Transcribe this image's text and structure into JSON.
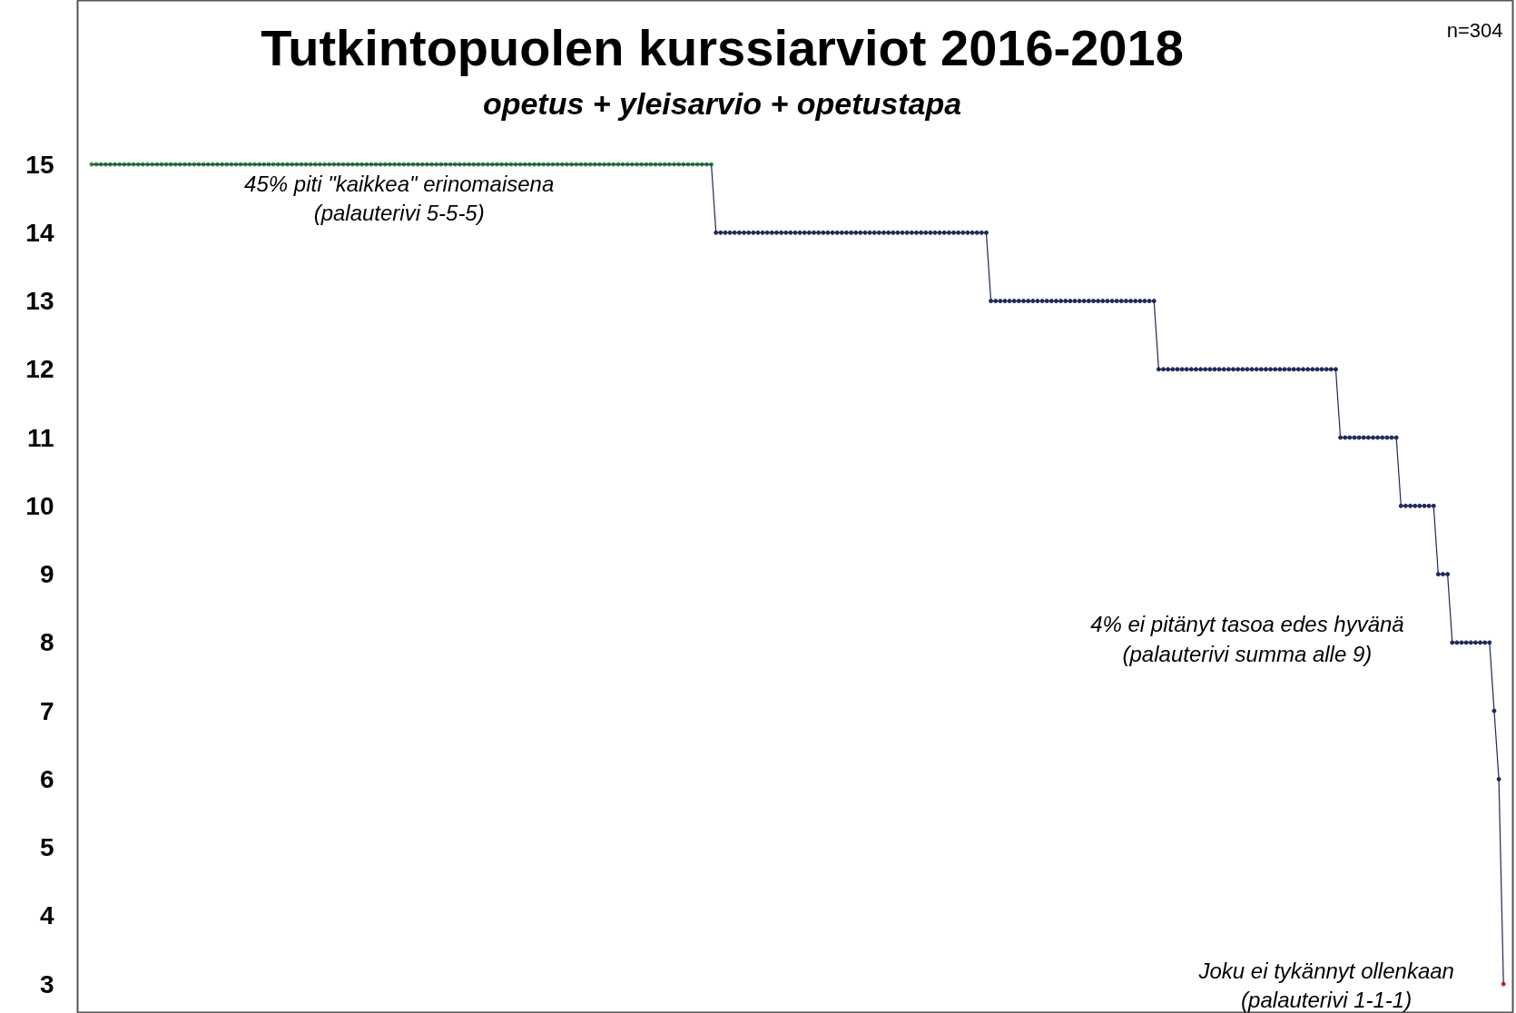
{
  "chart_data": {
    "type": "line",
    "title": "Tutkintopuolen kurssiarviot 2016-2018",
    "subtitle": "opetus + yleisarvio + opetustapa",
    "annotations": [
      "n=304",
      "45% piti \"kaikkea\" erinomaisena\n(palauterivi 5-5-5)",
      "4% ei pitänyt tasoa edes hyvänä\n(palauterivi summa alle 9)",
      "Joku ei tykännyt ollenkaan\n(palauterivi 1-1-1)"
    ],
    "categories": [
      null,
      null,
      null,
      null,
      null,
      null,
      null,
      null,
      null,
      null,
      null,
      null,
      null,
      null,
      null,
      null,
      null,
      null,
      null,
      null,
      null,
      null,
      null,
      null,
      null,
      null,
      null,
      null,
      null,
      null,
      null,
      null,
      null,
      null,
      null,
      null,
      null,
      null,
      null,
      null,
      null,
      null,
      null,
      null,
      null,
      null,
      null,
      null,
      null,
      null,
      null,
      null,
      null,
      null,
      null,
      null,
      null,
      null,
      null,
      null,
      null,
      null,
      null,
      null,
      null,
      null,
      null,
      null,
      null,
      null,
      null,
      null,
      null,
      null,
      null,
      null,
      null,
      null,
      null,
      null,
      null,
      null,
      null,
      null,
      null,
      null,
      null,
      null,
      null,
      null,
      null,
      null,
      null,
      null,
      null,
      null,
      null,
      null,
      null,
      null,
      null,
      null,
      null,
      null,
      null,
      null,
      null,
      null,
      null,
      null,
      null,
      null,
      null,
      null,
      null,
      null,
      null,
      null,
      null,
      null,
      null,
      null,
      null,
      null,
      null,
      null,
      null,
      null,
      null,
      null,
      null,
      null,
      null,
      null,
      null,
      null,
      null,
      null,
      null,
      null,
      null,
      null,
      null,
      null,
      null,
      null,
      null,
      null,
      null,
      null,
      null,
      null,
      null,
      null,
      null,
      null,
      null,
      null,
      null,
      null,
      null,
      null,
      null,
      null,
      null,
      null,
      null,
      null,
      null,
      null,
      null,
      null,
      null,
      null,
      null,
      null,
      null,
      null,
      null,
      null,
      null,
      null,
      null,
      null,
      null,
      null,
      null,
      null,
      null,
      null,
      null,
      null,
      null,
      null,
      null,
      null,
      null,
      null,
      null,
      null,
      null,
      null,
      null,
      null,
      null,
      null,
      null,
      null,
      null,
      null,
      null,
      null,
      null,
      null,
      null,
      null,
      null,
      null,
      null,
      null,
      null,
      null,
      null,
      null,
      null,
      null,
      null,
      null,
      null,
      null,
      null,
      null,
      null,
      null,
      null,
      null,
      null,
      null,
      null,
      null,
      null,
      null,
      null,
      null,
      null,
      null,
      null,
      null,
      null,
      null,
      null,
      null,
      null,
      null,
      null,
      null,
      null,
      null,
      null,
      null,
      null,
      null,
      null,
      null,
      null,
      null,
      null,
      null,
      null,
      null,
      null,
      null,
      null,
      null,
      null,
      null,
      null,
      null,
      null,
      null,
      null,
      null,
      null,
      null,
      null,
      null,
      null,
      null,
      null,
      null,
      null,
      null,
      null,
      null,
      null,
      null,
      null,
      null,
      null,
      null,
      null,
      null,
      null,
      null
    ],
    "series": [
      {
        "color": "#1f2a5c",
        "values": [
          15,
          15,
          15,
          15,
          15,
          15,
          15,
          15,
          15,
          15,
          15,
          15,
          15,
          15,
          15,
          15,
          15,
          15,
          15,
          15,
          15,
          15,
          15,
          15,
          15,
          15,
          15,
          15,
          15,
          15,
          15,
          15,
          15,
          15,
          15,
          15,
          15,
          15,
          15,
          15,
          15,
          15,
          15,
          15,
          15,
          15,
          15,
          15,
          15,
          15,
          15,
          15,
          15,
          15,
          15,
          15,
          15,
          15,
          15,
          15,
          15,
          15,
          15,
          15,
          15,
          15,
          15,
          15,
          15,
          15,
          15,
          15,
          15,
          15,
          15,
          15,
          15,
          15,
          15,
          15,
          15,
          15,
          15,
          15,
          15,
          15,
          15,
          15,
          15,
          15,
          15,
          15,
          15,
          15,
          15,
          15,
          15,
          15,
          15,
          15,
          15,
          15,
          15,
          15,
          15,
          15,
          15,
          15,
          15,
          15,
          15,
          15,
          15,
          15,
          15,
          15,
          15,
          15,
          15,
          15,
          15,
          15,
          15,
          15,
          15,
          15,
          15,
          15,
          15,
          15,
          15,
          15,
          15,
          15,
          14,
          14,
          14,
          14,
          14,
          14,
          14,
          14,
          14,
          14,
          14,
          14,
          14,
          14,
          14,
          14,
          14,
          14,
          14,
          14,
          14,
          14,
          14,
          14,
          14,
          14,
          14,
          14,
          14,
          14,
          14,
          14,
          14,
          14,
          14,
          14,
          14,
          14,
          14,
          14,
          14,
          14,
          14,
          14,
          14,
          14,
          14,
          14,
          14,
          14,
          14,
          14,
          14,
          14,
          14,
          14,
          14,
          14,
          14,
          13,
          13,
          13,
          13,
          13,
          13,
          13,
          13,
          13,
          13,
          13,
          13,
          13,
          13,
          13,
          13,
          13,
          13,
          13,
          13,
          13,
          13,
          13,
          13,
          13,
          13,
          13,
          13,
          13,
          13,
          13,
          13,
          13,
          13,
          13,
          13,
          12,
          12,
          12,
          12,
          12,
          12,
          12,
          12,
          12,
          12,
          12,
          12,
          12,
          12,
          12,
          12,
          12,
          12,
          12,
          12,
          12,
          12,
          12,
          12,
          12,
          12,
          12,
          12,
          12,
          12,
          12,
          12,
          12,
          12,
          12,
          12,
          12,
          12,
          12,
          11,
          11,
          11,
          11,
          11,
          11,
          11,
          11,
          11,
          11,
          11,
          11,
          11,
          10,
          10,
          10,
          10,
          10,
          10,
          10,
          10,
          9,
          9,
          9,
          8,
          8,
          8,
          8,
          8,
          8,
          8,
          8,
          8,
          7,
          6,
          3
        ],
        "colors": [
          "#2ca02c",
          "#2ca02c",
          "#2ca02c",
          "#2ca02c",
          "#2ca02c",
          "#2ca02c",
          "#2ca02c",
          "#2ca02c",
          "#2ca02c",
          "#2ca02c",
          "#2ca02c",
          "#2ca02c",
          "#2ca02c",
          "#2ca02c",
          "#2ca02c",
          "#2ca02c",
          "#2ca02c",
          "#2ca02c",
          "#2ca02c",
          "#2ca02c",
          "#2ca02c",
          "#2ca02c",
          "#2ca02c",
          "#2ca02c",
          "#2ca02c",
          "#2ca02c",
          "#2ca02c",
          "#2ca02c",
          "#2ca02c",
          "#2ca02c",
          "#2ca02c",
          "#2ca02c",
          "#2ca02c",
          "#2ca02c",
          "#2ca02c",
          "#2ca02c",
          "#2ca02c",
          "#2ca02c",
          "#2ca02c",
          "#2ca02c",
          "#2ca02c",
          "#2ca02c",
          "#2ca02c",
          "#2ca02c",
          "#2ca02c",
          "#2ca02c",
          "#2ca02c",
          "#2ca02c",
          "#2ca02c",
          "#2ca02c",
          "#2ca02c",
          "#2ca02c",
          "#2ca02c",
          "#2ca02c",
          "#2ca02c",
          "#2ca02c",
          "#2ca02c",
          "#2ca02c",
          "#2ca02c",
          "#2ca02c",
          "#2ca02c",
          "#2ca02c",
          "#2ca02c",
          "#2ca02c",
          "#2ca02c",
          "#2ca02c",
          "#2ca02c",
          "#2ca02c",
          "#2ca02c",
          "#2ca02c",
          "#2ca02c",
          "#2ca02c",
          "#2ca02c",
          "#2ca02c",
          "#2ca02c",
          "#2ca02c",
          "#2ca02c",
          "#2ca02c",
          "#2ca02c",
          "#2ca02c",
          "#2ca02c",
          "#2ca02c",
          "#2ca02c",
          "#2ca02c",
          "#2ca02c",
          "#2ca02c",
          "#2ca02c",
          "#2ca02c",
          "#2ca02c",
          "#2ca02c",
          "#2ca02c",
          "#2ca02c",
          "#2ca02c",
          "#2ca02c",
          "#2ca02c",
          "#2ca02c",
          "#2ca02c",
          "#2ca02c",
          "#2ca02c",
          "#2ca02c",
          "#2ca02c",
          "#2ca02c",
          "#2ca02c",
          "#2ca02c",
          "#2ca02c",
          "#2ca02c",
          "#2ca02c",
          "#2ca02c",
          "#2ca02c",
          "#2ca02c",
          "#2ca02c",
          "#2ca02c",
          "#2ca02c",
          "#2ca02c",
          "#2ca02c",
          "#2ca02c",
          "#2ca02c",
          "#2ca02c",
          "#2ca02c",
          "#2ca02c",
          "#2ca02c",
          "#2ca02c",
          "#2ca02c",
          "#2ca02c",
          "#2ca02c",
          "#2ca02c",
          "#2ca02c",
          "#2ca02c",
          "#2ca02c",
          "#2ca02c",
          "#2ca02c",
          "#2ca02c",
          "#2ca02c",
          "#2ca02c",
          "#1f2a5c",
          "#1f2a5c",
          "#1f2a5c",
          "#1f2a5c",
          "#1f2a5c",
          "#1f2a5c",
          "#1f2a5c",
          "#1f2a5c",
          "#1f2a5c",
          "#1f2a5c",
          "#1f2a5c",
          "#1f2a5c",
          "#1f2a5c",
          "#1f2a5c",
          "#1f2a5c",
          "#1f2a5c",
          "#1f2a5c",
          "#1f2a5c",
          "#1f2a5c",
          "#1f2a5c",
          "#1f2a5c",
          "#1f2a5c",
          "#1f2a5c",
          "#1f2a5c",
          "#1f2a5c",
          "#1f2a5c",
          "#1f2a5c",
          "#1f2a5c",
          "#1f2a5c",
          "#1f2a5c",
          "#1f2a5c",
          "#1f2a5c",
          "#1f2a5c",
          "#1f2a5c",
          "#1f2a5c",
          "#1f2a5c",
          "#1f2a5c",
          "#1f2a5c",
          "#1f2a5c",
          "#1f2a5c",
          "#1f2a5c",
          "#1f2a5c",
          "#1f2a5c",
          "#1f2a5c",
          "#1f2a5c",
          "#1f2a5c",
          "#1f2a5c",
          "#1f2a5c",
          "#1f2a5c",
          "#1f2a5c",
          "#1f2a5c",
          "#1f2a5c",
          "#1f2a5c",
          "#1f2a5c",
          "#1f2a5c",
          "#1f2a5c",
          "#1f2a5c",
          "#1f2a5c",
          "#1f2a5c",
          "#1f2a5c",
          "#1f2a5c",
          "#1f2a5c",
          "#1f2a5c",
          "#1f2a5c",
          "#1f2a5c",
          "#1f2a5c",
          "#1f2a5c",
          "#1f2a5c",
          "#1f2a5c",
          "#1f2a5c",
          "#1f2a5c",
          "#1f2a5c",
          "#1f2a5c",
          "#1f2a5c",
          "#1f2a5c",
          "#1f2a5c",
          "#1f2a5c",
          "#1f2a5c",
          "#1f2a5c",
          "#1f2a5c",
          "#1f2a5c",
          "#1f2a5c",
          "#1f2a5c",
          "#1f2a5c",
          "#1f2a5c",
          "#1f2a5c",
          "#1f2a5c",
          "#1f2a5c",
          "#1f2a5c",
          "#1f2a5c",
          "#1f2a5c",
          "#1f2a5c",
          "#1f2a5c",
          "#1f2a5c",
          "#1f2a5c",
          "#1f2a5c",
          "#1f2a5c",
          "#1f2a5c",
          "#1f2a5c",
          "#1f2a5c",
          "#1f2a5c",
          "#1f2a5c",
          "#1f2a5c",
          "#1f2a5c",
          "#1f2a5c",
          "#1f2a5c",
          "#1f2a5c",
          "#1f2a5c",
          "#1f2a5c",
          "#1f2a5c",
          "#1f2a5c",
          "#1f2a5c",
          "#1f2a5c",
          "#1f2a5c",
          "#1f2a5c",
          "#1f2a5c",
          "#1f2a5c",
          "#1f2a5c",
          "#1f2a5c",
          "#1f2a5c",
          "#1f2a5c",
          "#1f2a5c",
          "#1f2a5c",
          "#1f2a5c",
          "#1f2a5c",
          "#1f2a5c",
          "#1f2a5c",
          "#1f2a5c",
          "#1f2a5c",
          "#1f2a5c",
          "#1f2a5c",
          "#1f2a5c",
          "#1f2a5c",
          "#1f2a5c",
          "#1f2a5c",
          "#1f2a5c",
          "#1f2a5c",
          "#1f2a5c",
          "#1f2a5c",
          "#1f2a5c",
          "#1f2a5c",
          "#1f2a5c",
          "#1f2a5c",
          "#1f2a5c",
          "#1f2a5c",
          "#1f2a5c",
          "#1f2a5c",
          "#1f2a5c",
          "#1f2a5c",
          "#1f2a5c",
          "#1f2a5c",
          "#1f2a5c",
          "#1f2a5c",
          "#1f2a5c",
          "#1f2a5c",
          "#1f2a5c",
          "#1f2a5c",
          "#1f2a5c",
          "#1f2a5c",
          "#1f2a5c",
          "#1f2a5c",
          "#1f2a5c",
          "#1f2a5c",
          "#1f2a5c",
          "#1f2a5c",
          "#1f2a5c",
          "#1f2a5c",
          "#1f2a5c",
          "#1f2a5c",
          "#e02020"
        ]
      }
    ],
    "ylim": [
      2.57,
      17.4
    ],
    "yticks": [
      3,
      4,
      5,
      6,
      7,
      8,
      9,
      10,
      11,
      12,
      13,
      14,
      15
    ],
    "marker": "circle",
    "line_style": "solid",
    "tick_labels": "y",
    "grid": false
  }
}
